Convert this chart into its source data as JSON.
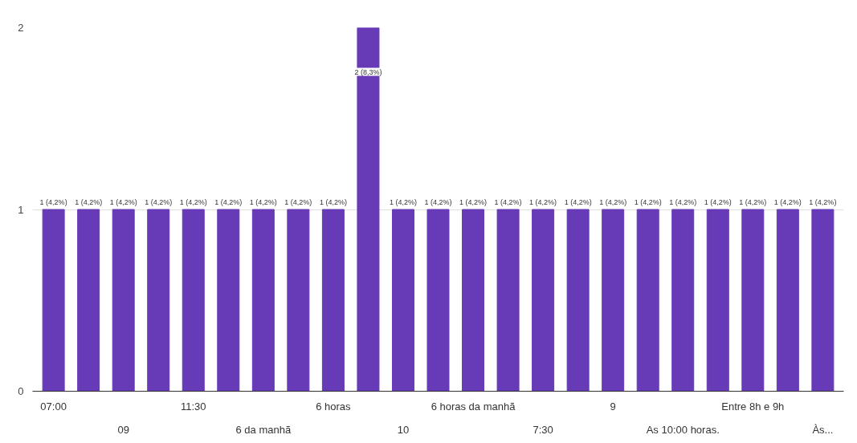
{
  "chart_data": {
    "type": "bar",
    "categories": [
      "07:00",
      null,
      "09",
      null,
      "11:30",
      null,
      "6 da manhã",
      null,
      "6 horas",
      null,
      "10",
      null,
      "6 horas da manhã",
      null,
      "7:30",
      null,
      "9",
      null,
      "As 10:00 horas.",
      null,
      "Entre 8h e 9h",
      null,
      "Às..."
    ],
    "values": [
      1,
      1,
      1,
      1,
      1,
      1,
      1,
      1,
      1,
      2,
      1,
      1,
      1,
      1,
      1,
      1,
      1,
      1,
      1,
      1,
      1,
      1,
      1
    ],
    "value_labels": [
      "1 (4,2%)",
      "1 (4,2%)",
      "1 (4,2%)",
      "1 (4,2%)",
      "1 (4,2%)",
      "1 (4,2%)",
      "1 (4,2%)",
      "1 (4,2%)",
      "1 (4,2%)",
      "2 (8,3%)",
      "1 (4,2%)",
      "1 (4,2%)",
      "1 (4,2%)",
      "1 (4,2%)",
      "1 (4,2%)",
      "1 (4,2%)",
      "1 (4,2%)",
      "1 (4,2%)",
      "1 (4,2%)",
      "1 (4,2%)",
      "1 (4,2%)",
      "1 (4,2%)",
      "1 (4,2%)"
    ],
    "color": "#673ab7",
    "ylim": [
      0,
      2
    ],
    "yticks": [
      0,
      1,
      2
    ],
    "grid": "y"
  }
}
